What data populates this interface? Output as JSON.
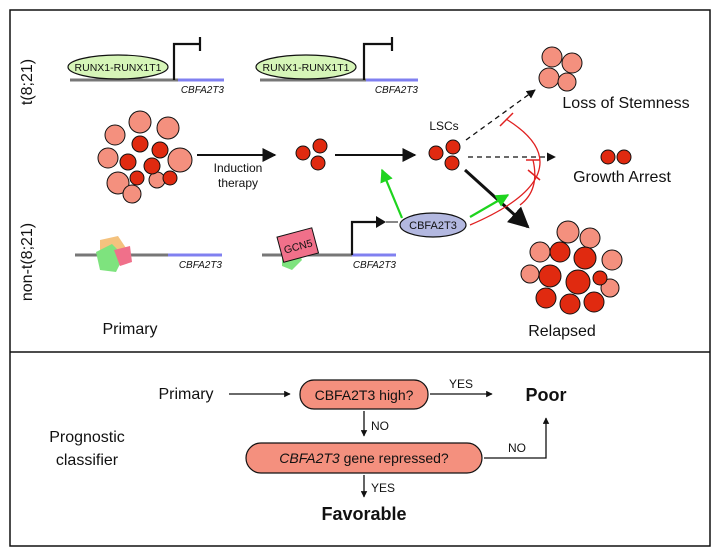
{
  "top_panel": {
    "row_label_translocation": "t(8;21)",
    "row_label_non_translocation": "non-t(8;21)",
    "fusion_protein_1": "RUNX1-RUNX1T1",
    "fusion_protein_2": "RUNX1-RUNX1T1",
    "gene_label_1": "CBFA2T3",
    "gene_label_2": "CBFA2T3",
    "gene_label_3": "CBFA2T3",
    "gene_label_4": "CBFA2T3",
    "induction_label_line1": "Induction",
    "induction_label_line2": "therapy",
    "lscs_label": "LSCs",
    "cbfa2t3_protein": "CBFA2T3",
    "gcn5_label": "GCN5",
    "outcome_loss": "Loss of Stemness",
    "outcome_arrest": "Growth Arrest",
    "stage_primary": "Primary",
    "stage_relapsed": "Relapsed",
    "colors": {
      "cell_light": "#f4907e",
      "cell_dark": "#e02a10",
      "fusion_green": "#d6f5b8",
      "protein_blue": "#b3b8e0",
      "arrow_green": "#1ed41e",
      "inhibit_red": "#e02020",
      "gene_line_blue": "#8080f0"
    }
  },
  "bottom_panel": {
    "classifier_line1": "Prognostic",
    "classifier_line2": "classifier",
    "start_label": "Primary",
    "decision_1": "CBFA2T3 high?",
    "decision_2_gene": "CBFA2T3",
    "decision_2_rest": " gene repressed?",
    "yes_label_1": "YES",
    "no_label_1": "NO",
    "no_label_2": "NO",
    "yes_label_2": "YES",
    "outcome_poor": "Poor",
    "outcome_favorable": "Favorable"
  }
}
